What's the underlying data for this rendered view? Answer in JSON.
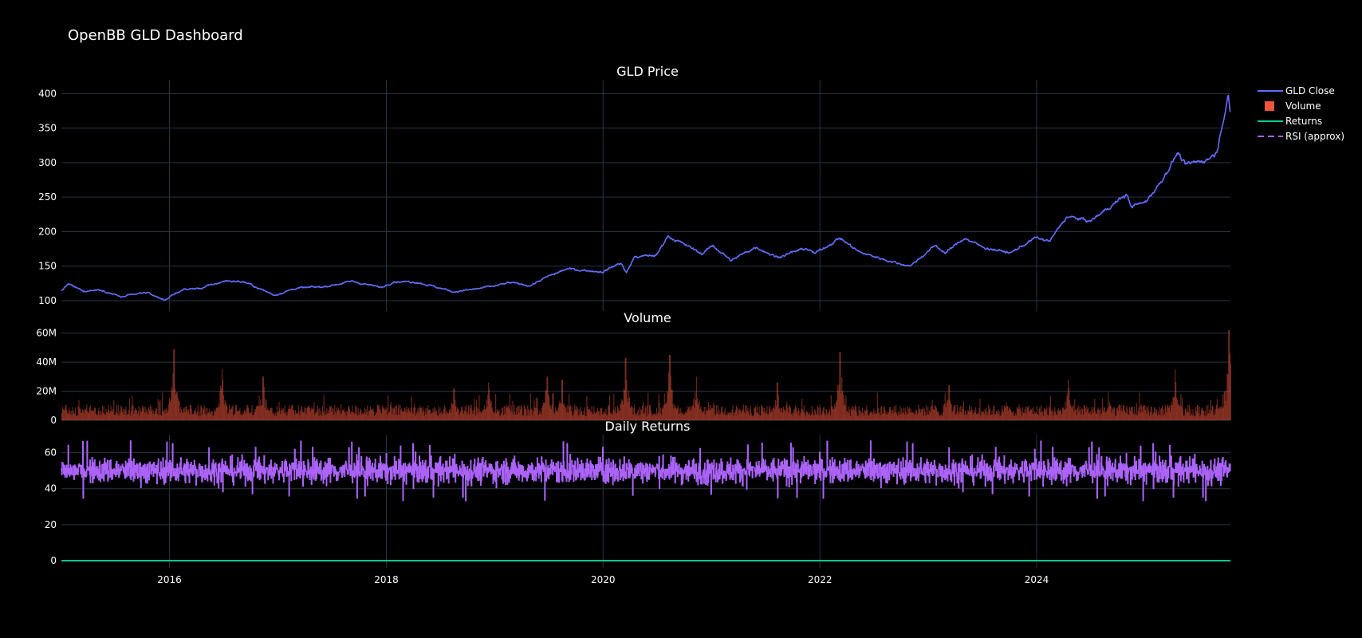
{
  "title": "OpenBB GLD Dashboard",
  "colors": {
    "background": "#000000",
    "grid": "#283442",
    "price": "#636efa",
    "volume": "#ef553b",
    "returns": "#00cc96",
    "rsi": "#ab63fa"
  },
  "chart_data": [
    {
      "type": "line",
      "title": "GLD Price",
      "xlabel": "",
      "ylabel": "",
      "x_ticks": [
        "2016",
        "2018",
        "2020",
        "2022",
        "2024"
      ],
      "y_ticks": [
        "100",
        "150",
        "200",
        "250",
        "300",
        "350",
        "400"
      ],
      "xlim": [
        "2015-01-02",
        "2025-10-15"
      ],
      "ylim": [
        85,
        420
      ],
      "grid": true,
      "series": [
        {
          "name": "GLD Close",
          "anchors": [
            [
              "2015-01-02",
              114
            ],
            [
              "2015-01-25",
              124
            ],
            [
              "2015-03-15",
              114
            ],
            [
              "2015-05-15",
              116
            ],
            [
              "2015-07-25",
              105
            ],
            [
              "2015-10-15",
              112
            ],
            [
              "2015-12-15",
              101
            ],
            [
              "2016-02-15",
              116
            ],
            [
              "2016-04-15",
              118
            ],
            [
              "2016-07-10",
              129
            ],
            [
              "2016-09-10",
              127
            ],
            [
              "2016-12-20",
              108
            ],
            [
              "2017-03-01",
              118
            ],
            [
              "2017-06-01",
              120
            ],
            [
              "2017-09-08",
              128
            ],
            [
              "2017-12-15",
              119
            ],
            [
              "2018-01-25",
              128
            ],
            [
              "2018-04-15",
              127
            ],
            [
              "2018-08-15",
              113
            ],
            [
              "2018-10-15",
              116
            ],
            [
              "2018-12-31",
              121
            ],
            [
              "2019-02-20",
              126
            ],
            [
              "2019-05-01",
              122
            ],
            [
              "2019-06-25",
              134
            ],
            [
              "2019-09-01",
              146
            ],
            [
              "2019-12-31",
              142
            ],
            [
              "2020-03-01",
              155
            ],
            [
              "2020-03-20",
              140
            ],
            [
              "2020-04-15",
              163
            ],
            [
              "2020-06-30",
              166
            ],
            [
              "2020-08-06",
              194
            ],
            [
              "2020-11-30",
              168
            ],
            [
              "2021-01-05",
              180
            ],
            [
              "2021-03-08",
              158
            ],
            [
              "2021-05-30",
              178
            ],
            [
              "2021-08-10",
              163
            ],
            [
              "2021-11-15",
              176
            ],
            [
              "2021-12-15",
              168
            ],
            [
              "2022-03-08",
              191
            ],
            [
              "2022-05-15",
              170
            ],
            [
              "2022-09-30",
              153
            ],
            [
              "2022-11-03",
              151
            ],
            [
              "2023-01-25",
              180
            ],
            [
              "2023-02-28",
              169
            ],
            [
              "2023-05-03",
              191
            ],
            [
              "2023-06-30",
              178
            ],
            [
              "2023-10-05",
              169
            ],
            [
              "2023-12-28",
              191
            ],
            [
              "2024-02-14",
              186
            ],
            [
              "2024-04-12",
              222
            ],
            [
              "2024-06-30",
              215
            ],
            [
              "2024-10-30",
              254
            ],
            [
              "2024-11-14",
              237
            ],
            [
              "2024-12-31",
              242
            ],
            [
              "2025-02-24",
              273
            ],
            [
              "2025-04-21",
              315
            ],
            [
              "2025-05-15",
              296
            ],
            [
              "2025-07-30",
              305
            ],
            [
              "2025-08-30",
              315
            ],
            [
              "2025-10-08",
              402
            ],
            [
              "2025-10-15",
              365
            ]
          ]
        }
      ]
    },
    {
      "type": "bar",
      "title": "Volume",
      "xlabel": "",
      "ylabel": "",
      "y_ticks": [
        "0",
        "20M",
        "40M",
        "60M"
      ],
      "ylim": [
        0,
        62000000
      ],
      "grid": true,
      "series": [
        {
          "name": "Volume",
          "baseline": 8000000,
          "peaks": [
            [
              "2016-01-15",
              49000000
            ],
            [
              "2016-06-25",
              35000000
            ],
            [
              "2016-11-10",
              30000000
            ],
            [
              "2018-08-15",
              22000000
            ],
            [
              "2018-12-10",
              26000000
            ],
            [
              "2019-06-25",
              30000000
            ],
            [
              "2019-08-15",
              28000000
            ],
            [
              "2020-03-16",
              43000000
            ],
            [
              "2020-08-11",
              45000000
            ],
            [
              "2020-11-09",
              30000000
            ],
            [
              "2021-08-09",
              26000000
            ],
            [
              "2022-03-08",
              47000000
            ],
            [
              "2023-03-10",
              24000000
            ],
            [
              "2024-04-15",
              28000000
            ],
            [
              "2025-04-10",
              35000000
            ],
            [
              "2025-10-09",
              62000000
            ]
          ]
        }
      ]
    },
    {
      "type": "line",
      "title": "Daily Returns",
      "xlabel": "",
      "ylabel": "",
      "x_ticks": [
        "2016",
        "2018",
        "2020",
        "2022",
        "2024"
      ],
      "y_ticks": [
        "0",
        "20",
        "40",
        "60"
      ],
      "ylim": [
        -4,
        70
      ],
      "grid": true,
      "series": [
        {
          "name": "Returns",
          "value": 0
        },
        {
          "name": "RSI (approx)",
          "center": 50,
          "range": [
            32,
            67
          ]
        }
      ]
    }
  ],
  "legend": {
    "placement": "top-right",
    "items": [
      "GLD Close",
      "Volume",
      "Returns",
      "RSI (approx)"
    ]
  }
}
